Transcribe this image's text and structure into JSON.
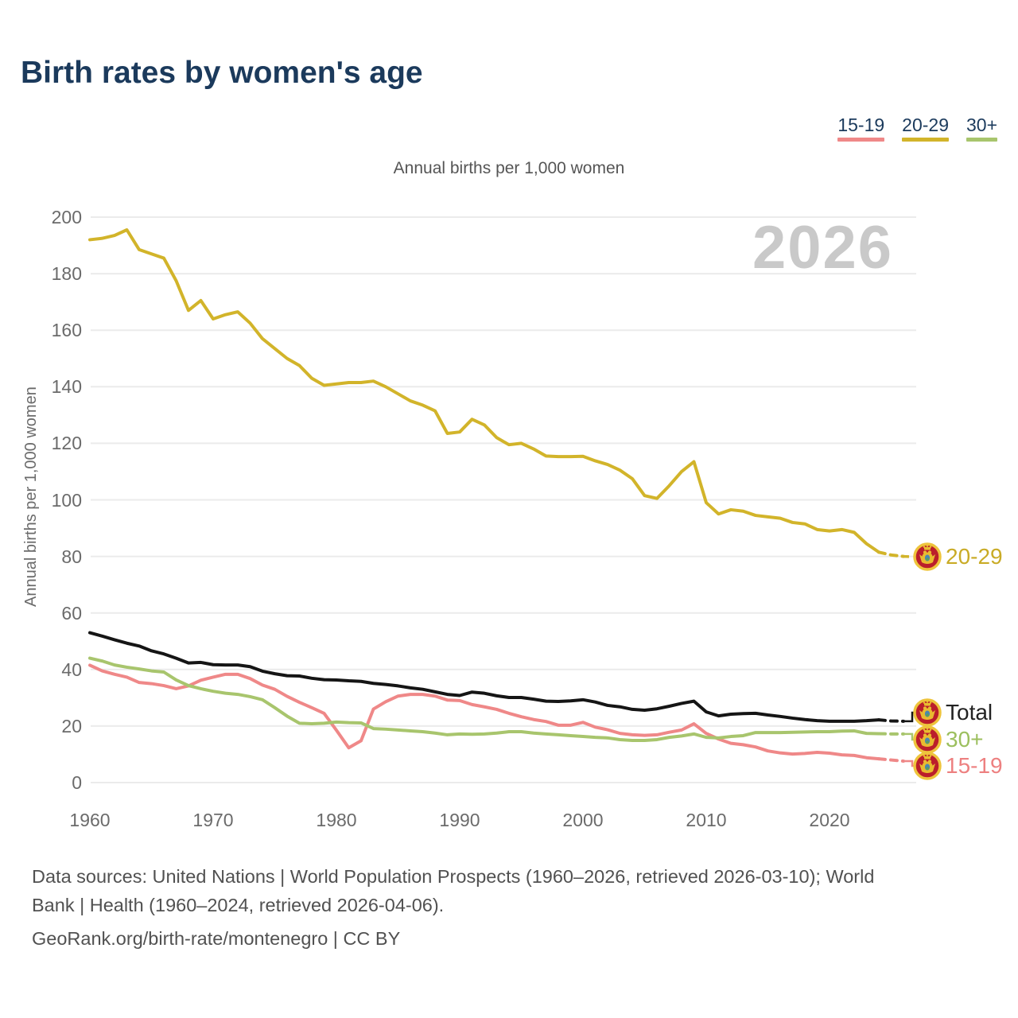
{
  "title": "Birth rates by women's age",
  "subtitle": "Annual births per 1,000 women",
  "watermark_year": "2026",
  "legend": {
    "items": [
      {
        "label": "15-19",
        "color": "#ef8888"
      },
      {
        "label": "20-29",
        "color": "#d2b42a"
      },
      {
        "label": "30+",
        "color": "#a8c56d"
      }
    ]
  },
  "y_axis": {
    "title": "Annual births per 1,000 women",
    "ticks": [
      0,
      20,
      40,
      60,
      80,
      100,
      120,
      140,
      160,
      180,
      200
    ]
  },
  "x_axis": {
    "ticks": [
      1960,
      1970,
      1980,
      1990,
      2000,
      2010,
      2020
    ]
  },
  "chart_data": {
    "type": "line",
    "title": "Birth rates by women's age",
    "ylabel": "Annual births per 1,000 women",
    "ylim": [
      0,
      200
    ],
    "xlim": [
      1960,
      2026
    ],
    "grid": "horizontal",
    "legend_position": "top-right",
    "note": "last two years of each series drawn dashed (projection to 2026)",
    "x": [
      1960,
      1961,
      1962,
      1963,
      1964,
      1965,
      1966,
      1967,
      1968,
      1969,
      1970,
      1971,
      1972,
      1973,
      1974,
      1975,
      1976,
      1977,
      1978,
      1979,
      1980,
      1981,
      1982,
      1983,
      1984,
      1985,
      1986,
      1987,
      1988,
      1989,
      1990,
      1991,
      1992,
      1993,
      1994,
      1995,
      1996,
      1997,
      1998,
      1999,
      2000,
      2001,
      2002,
      2003,
      2004,
      2005,
      2006,
      2007,
      2008,
      2009,
      2010,
      2011,
      2012,
      2013,
      2014,
      2015,
      2016,
      2017,
      2018,
      2019,
      2020,
      2021,
      2022,
      2023,
      2024,
      2025,
      2026
    ],
    "series": [
      {
        "name": "20-29",
        "color": "#d2b42a",
        "label_color": "#c9ab26",
        "values": [
          192,
          192.5,
          193.5,
          195.5,
          188.5,
          187,
          185.5,
          177.5,
          167,
          170.5,
          164,
          165.5,
          166.5,
          162.5,
          157,
          153.5,
          150,
          147.5,
          143,
          140.5,
          141,
          141.5,
          141.5,
          142,
          140,
          137.5,
          135,
          133.5,
          131.5,
          123.5,
          124,
          128.5,
          126.5,
          122,
          119.5,
          120,
          118,
          115.5,
          115.3,
          115.3,
          115.4,
          113.8,
          112.5,
          110.5,
          107.5,
          101.5,
          100.5,
          105,
          110,
          113.5,
          99,
          95,
          96.5,
          96,
          94.5,
          94,
          93.5,
          92,
          91.5,
          89.5,
          89,
          89.5,
          88.5,
          84.5,
          81.5,
          80.5,
          80
        ]
      },
      {
        "name": "15-19",
        "color": "#ef8888",
        "label_color": "#ed8080",
        "values": [
          41.5,
          39.5,
          38.3,
          37.3,
          35.4,
          35,
          34.3,
          33.2,
          34.2,
          36.2,
          37.3,
          38.3,
          38.3,
          36.8,
          34.5,
          33,
          30.5,
          28.4,
          26.5,
          24.5,
          18.5,
          12.3,
          14.8,
          26,
          28.6,
          30.6,
          31.2,
          31.2,
          30.6,
          29.2,
          29,
          27.6,
          26.8,
          25.9,
          24.5,
          23.3,
          22.3,
          21.6,
          20.3,
          20.3,
          21.3,
          19.6,
          18.7,
          17.4,
          16.9,
          16.7,
          16.9,
          17.8,
          18.6,
          20.8,
          17.4,
          15.4,
          13.9,
          13.4,
          12.6,
          11.2,
          10.5,
          10.1,
          10.3,
          10.7,
          10.4,
          9.8,
          9.6,
          8.8,
          8.4,
          8,
          7.6
        ]
      },
      {
        "name": "30+",
        "color": "#a8c56d",
        "label_color": "#9cbf5e",
        "values": [
          44,
          43,
          41.6,
          40.8,
          40.2,
          39.5,
          39.1,
          36.3,
          34.3,
          33.2,
          32.3,
          31.6,
          31.2,
          30.4,
          29.3,
          26.5,
          23.5,
          21,
          20.8,
          21,
          21.4,
          21.2,
          21.1,
          19.1,
          18.9,
          18.6,
          18.3,
          18,
          17.5,
          16.9,
          17.2,
          17.1,
          17.2,
          17.5,
          18,
          18,
          17.5,
          17.2,
          16.9,
          16.6,
          16.3,
          16,
          15.8,
          15.2,
          14.9,
          14.9,
          15.2,
          16,
          16.5,
          17.2,
          16,
          15.8,
          16.3,
          16.6,
          17.7,
          17.7,
          17.7,
          17.8,
          17.9,
          18,
          18,
          18.2,
          18.3,
          17.4,
          17.3,
          17.2,
          17.2
        ]
      },
      {
        "name": "Total",
        "color": "#151515",
        "label_color": "#222222",
        "values": [
          53,
          51.8,
          50.5,
          49.3,
          48.3,
          46.6,
          45.5,
          44,
          42.3,
          42.5,
          41.7,
          41.6,
          41.6,
          41,
          39.4,
          38.5,
          37.8,
          37.7,
          36.9,
          36.4,
          36.3,
          36,
          35.8,
          35.1,
          34.7,
          34.2,
          33.5,
          33,
          32.1,
          31.2,
          30.8,
          32,
          31.6,
          30.7,
          30.1,
          30.1,
          29.5,
          28.8,
          28.7,
          28.9,
          29.3,
          28.5,
          27.3,
          26.8,
          25.9,
          25.6,
          26.1,
          27,
          28,
          28.8,
          25,
          23.6,
          24.2,
          24.4,
          24.5,
          23.9,
          23.4,
          22.8,
          22.3,
          21.9,
          21.7,
          21.7,
          21.7,
          21.9,
          22.2,
          21.8,
          21.7
        ]
      }
    ],
    "end_labels": [
      "20-29",
      "Total",
      "30+",
      "15-19"
    ]
  },
  "flag": {
    "name": "montenegro",
    "red": "#bb1e2b",
    "gold": "#eec43c",
    "emblem_gold": "#e9bb30",
    "shield_blue": "#4a86b4",
    "shield_green": "#5aa05a"
  },
  "footer": {
    "line1": "Data sources: United Nations | World Population Prospects (1960–2026, retrieved 2026-03-10); World",
    "line2": "Bank | Health (1960–2024, retrieved 2026-04-06).",
    "line3": "GeoRank.org/birth-rate/montenegro | CC BY"
  }
}
